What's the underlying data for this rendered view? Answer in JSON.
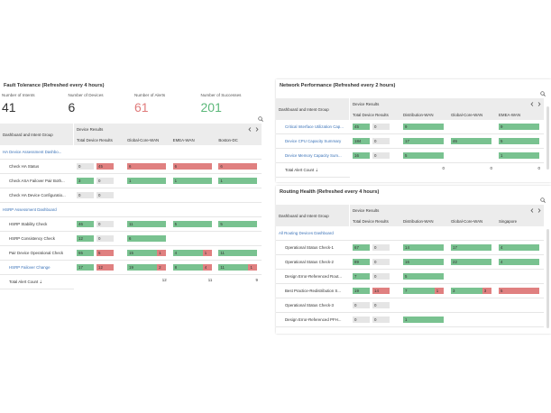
{
  "panels": [
    {
      "title": "Fault Tolerance (Refreshed every 4 hours)",
      "stats": [
        {
          "label": "Number of Intents",
          "value": 41,
          "color": "#333333"
        },
        {
          "label": "Number of Devices",
          "value": 6,
          "color": "#333333"
        },
        {
          "label": "Number of Alerts",
          "value": 61,
          "color": "#e07b7b"
        },
        {
          "label": "Number of Successes",
          "value": 201,
          "color": "#5cb87a"
        }
      ],
      "table": {
        "group_header": "Dashboard and Intent Group",
        "results_header": "Device Results",
        "columns": [
          "Total Device Results",
          "Global-Core-WAN",
          "EMEA-WAN",
          "Boston-DC"
        ],
        "rows": [
          {
            "label": "HA Device Assessment Dashbo...",
            "group": true
          },
          {
            "label": "Check HA Status",
            "total": [
              0,
              45
            ],
            "cells": [
              [
                null,
                6
              ],
              [
                null,
                6
              ],
              [
                null,
                6
              ]
            ]
          },
          {
            "label": "Check ASA Failover Pair Both...",
            "total": [
              3,
              0
            ],
            "cells": [
              [
                1,
                null
              ],
              [
                1,
                null
              ],
              [
                1,
                null
              ]
            ]
          },
          {
            "label": "Check HA Device Configuratio...",
            "total": [
              0,
              0
            ],
            "cells": [
              null,
              null,
              null
            ]
          },
          {
            "label": "HSRP Assessment Dashboard",
            "group": true
          },
          {
            "label": "HSRP Stability Check",
            "total": [
              46,
              0
            ],
            "cells": [
              [
                11,
                null
              ],
              [
                5,
                null
              ],
              [
                5,
                null
              ]
            ]
          },
          {
            "label": "HSRP Consistency Check",
            "total": [
              12,
              0
            ],
            "cells": [
              [
                6,
                null
              ],
              null,
              null
            ]
          },
          {
            "label": "Pair Device Operational Check",
            "total": [
              55,
              5
            ],
            "cells": [
              [
                15,
                1
              ],
              [
                4,
                1
              ],
              [
                11,
                null
              ]
            ]
          },
          {
            "label": "HSRP Failover Change",
            "link": true,
            "total": [
              17,
              12
            ],
            "cells": [
              [
                19,
                2
              ],
              [
                8,
                4
              ],
              [
                11,
                1
              ]
            ]
          }
        ],
        "footer": {
          "label": "Total Alert Count ⇣",
          "values": [
            null,
            12,
            11,
            9
          ]
        }
      }
    },
    {
      "title": "Network Performance (Refreshed every 2 hours)",
      "table": {
        "group_header": "Dashboard and Intent Group",
        "results_header": "Device Results",
        "columns": [
          "Total Device Results",
          "Distribution-WAN",
          "Global-Core-WAN",
          "EMEA-WAN"
        ],
        "rows": [
          {
            "label": "Critical Interface Utilization Cap...",
            "link": true,
            "total": [
              45,
              0
            ],
            "cells": [
              [
                9,
                null
              ],
              null,
              [
                9,
                null
              ]
            ]
          },
          {
            "label": "Device CPU Capacity Summary",
            "link": true,
            "total": [
              184,
              0
            ],
            "cells": [
              [
                17,
                null
              ],
              [
                46,
                null
              ],
              [
                5,
                null
              ]
            ]
          },
          {
            "label": "Device Memory Capacity Sum...",
            "link": true,
            "total": [
              16,
              0
            ],
            "cells": [
              [
                5,
                null
              ],
              null,
              [
                1,
                null
              ]
            ]
          }
        ],
        "footer": {
          "label": "Total Alert Count ⇣",
          "values": [
            null,
            0,
            0,
            0
          ]
        }
      }
    },
    {
      "title": "Routing Health (Refreshed every 4 hours)",
      "table": {
        "group_header": "Dashboard and Intent Group",
        "results_header": "Device Results",
        "columns": [
          "Total Device Results",
          "Distribution-WAN",
          "Global-Core-WAN",
          "Singapore"
        ],
        "rows": [
          {
            "label": "All Routing Devices Dashboard",
            "group": true
          },
          {
            "label": "Operational Status Check-1",
            "total": [
              67,
              0
            ],
            "cells": [
              [
                14,
                null
              ],
              [
                17,
                null
              ],
              [
                4,
                null
              ]
            ]
          },
          {
            "label": "Operational Status Check-2",
            "total": [
              89,
              0
            ],
            "cells": [
              [
                16,
                null
              ],
              [
                22,
                null
              ],
              [
                4,
                null
              ]
            ]
          },
          {
            "label": "Design Error-Referenced Rout...",
            "total": [
              7,
              0
            ],
            "cells": [
              [
                5,
                null
              ],
              null,
              null
            ]
          },
          {
            "label": "Best Practice-Redistribution S...",
            "total": [
              19,
              14
            ],
            "cells": [
              [
                7,
                1
              ],
              [
                3,
                3
              ],
              [
                null,
                5
              ]
            ]
          },
          {
            "label": "Operational Status Check-3",
            "total": [
              0,
              0
            ],
            "cells": [
              null,
              null,
              null
            ]
          },
          {
            "label": "Design Error-Referenced PFH...",
            "total": [
              0,
              0
            ],
            "cells": [
              [
                1,
                null
              ],
              null,
              null
            ]
          }
        ]
      }
    }
  ]
}
